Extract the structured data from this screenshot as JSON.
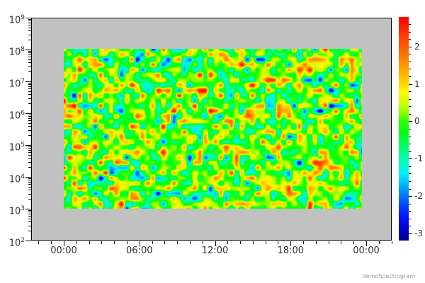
{
  "footer": {
    "label": "demoSpectrogram"
  },
  "axes": {
    "x": {
      "tick_labels": [
        "00:00",
        "06:00",
        "12:00",
        "18:00",
        "00:00"
      ],
      "minor_tick_interval_hours": 1
    },
    "y": {
      "scale": "log",
      "base_label": "10",
      "tick_exponents": [
        9,
        8,
        7,
        6,
        5,
        4,
        3,
        2
      ]
    },
    "colorbar": {
      "tick_labels": [
        "2",
        "1",
        "0",
        "-1",
        "-2",
        "-3"
      ],
      "tick_values": [
        2,
        1,
        0,
        -1,
        -2,
        -3
      ],
      "minor_tick_interval": 0.2
    }
  },
  "chart_data": {
    "type": "heatmap",
    "title": "",
    "xlabel": "",
    "ylabel": "",
    "x_axis": {
      "unit": "time",
      "tick_labels": [
        "00:00",
        "06:00",
        "12:00",
        "18:00",
        "00:00"
      ],
      "span_hours": 24,
      "data_span_hours": [
        0,
        23.7
      ]
    },
    "y_axis": {
      "scale": "log10",
      "axis_range": [
        100.0,
        1000000000.0
      ],
      "data_range": [
        1000.0,
        100000000.0
      ]
    },
    "z_axis": {
      "range": [
        -3.19,
        2.79
      ],
      "major_ticks": [
        2,
        1,
        0,
        -1,
        -2,
        -3
      ],
      "minor_tick_step": 0.2
    },
    "values_description": "smooth pseudo-random gaussian field (spectrogram demo noise), mostly near 0 (green) with local maxima to ~+2.8 (red) and minima to ~-3.2 (blue)",
    "generation": {
      "seed": 1337,
      "cols": 57,
      "rows": 31,
      "sigma": 1.08,
      "clip": [
        -3.19,
        2.79
      ]
    },
    "colormap": {
      "stops": [
        [
          -3.2,
          "#000096"
        ],
        [
          -2.85,
          "#0000d8"
        ],
        [
          -2.5,
          "#001eff"
        ],
        [
          -2.1,
          "#0060ff"
        ],
        [
          -1.75,
          "#00aaff"
        ],
        [
          -1.4,
          "#00f0ff"
        ],
        [
          -1.1,
          "#00ffc0"
        ],
        [
          -0.7,
          "#00ff70"
        ],
        [
          -0.3,
          "#00ff10"
        ],
        [
          0.0,
          "#30ff00"
        ],
        [
          0.2,
          "#80ff00"
        ],
        [
          0.5,
          "#d0ff00"
        ],
        [
          0.8,
          "#fff800"
        ],
        [
          1.0,
          "#ffd500"
        ],
        [
          1.35,
          "#ffaa00"
        ],
        [
          1.8,
          "#ff7300"
        ],
        [
          2.3,
          "#ff3c00"
        ],
        [
          2.8,
          "#ff0000"
        ]
      ]
    },
    "background_color": "#c1c1c1",
    "grid": false,
    "legend_position": "right-colorbar"
  }
}
